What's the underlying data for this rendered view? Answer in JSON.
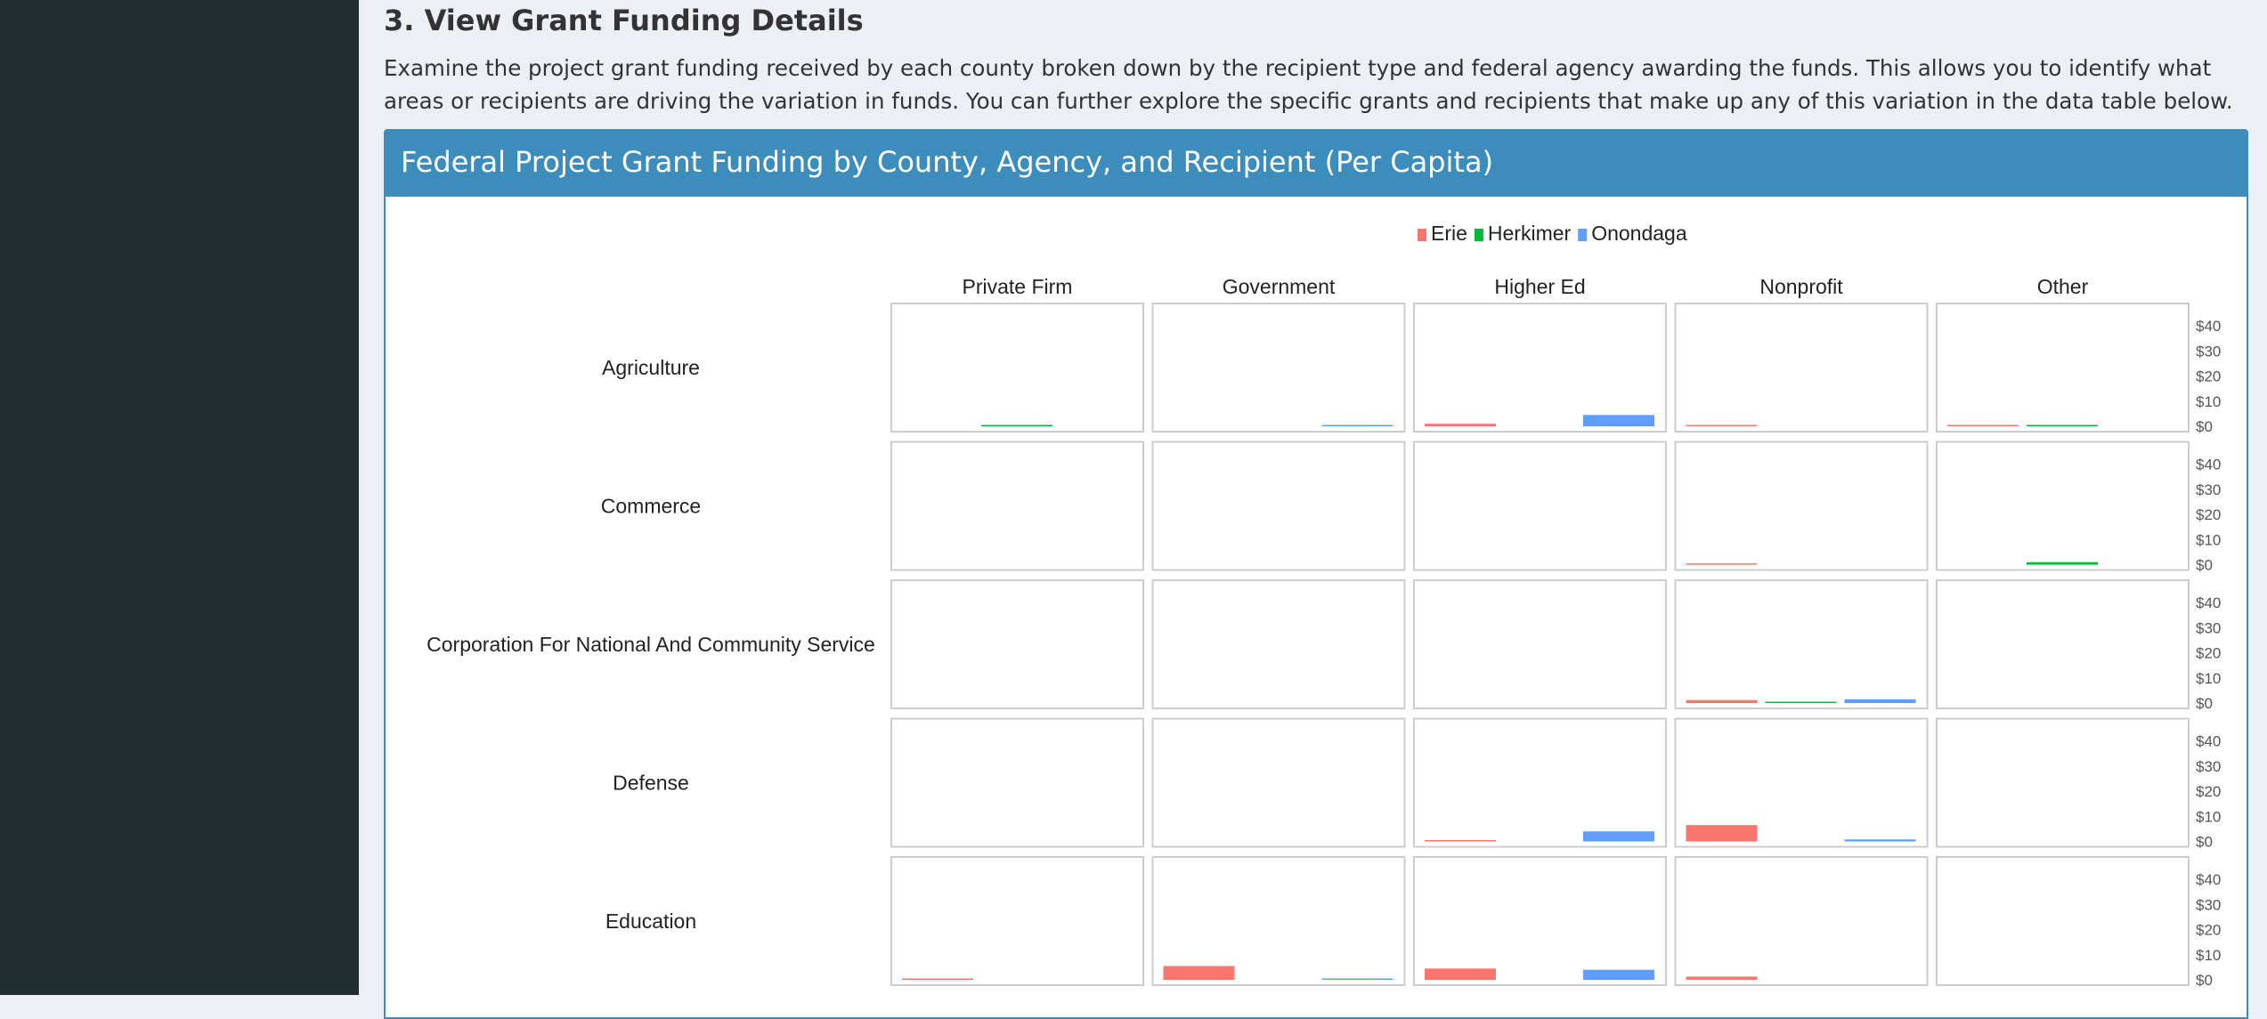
{
  "section": {
    "title": "3. View Grant Funding Details",
    "description": "Examine the project grant funding received by each county broken down by the recipient type and federal agency awarding the funds. This allows you to identify what areas or recipients are driving the variation in funds. You can further explore the specific grants and recipients that make up any of this variation in the data table below."
  },
  "box": {
    "title": "Federal Project Grant Funding by County, Agency, and Recipient (Per Capita)"
  },
  "chart_data": {
    "type": "bar",
    "layout": "facet-grid",
    "title": "Federal Project Grant Funding by County, Agency, and Recipient (Per Capita)",
    "legend_position": "top",
    "series": [
      {
        "name": "Erie",
        "color": "#f8766d"
      },
      {
        "name": "Herkimer",
        "color": "#00ba38"
      },
      {
        "name": "Onondaga",
        "color": "#619cff"
      }
    ],
    "columns": [
      "Private Firm",
      "Government",
      "Higher Ed",
      "Nonprofit",
      "Other"
    ],
    "rows": [
      "Agriculture",
      "Commerce",
      "Corporation For National And Community Service",
      "Defense",
      "Education"
    ],
    "y_ticks": [
      "$0",
      "$10",
      "$20",
      "$30",
      "$40"
    ],
    "ylim": [
      0,
      40
    ],
    "grid": false,
    "values": [
      [
        [
          0,
          0.5,
          0
        ],
        [
          0,
          0,
          0.3
        ],
        [
          1,
          0,
          4.5
        ],
        [
          0.3,
          0,
          0
        ],
        [
          0.3,
          0.3,
          0
        ]
      ],
      [
        [
          0,
          0,
          0
        ],
        [
          0,
          0,
          0
        ],
        [
          0,
          0,
          0
        ],
        [
          0.3,
          0,
          0
        ],
        [
          0,
          1,
          0
        ]
      ],
      [
        [
          0,
          0,
          0
        ],
        [
          0,
          0,
          0
        ],
        [
          0,
          0,
          0
        ],
        [
          1.2,
          0.5,
          1.5
        ],
        [
          0,
          0,
          0
        ]
      ],
      [
        [
          0,
          0,
          0
        ],
        [
          0,
          0,
          0
        ],
        [
          0.3,
          0,
          4
        ],
        [
          6.5,
          0,
          0.8
        ],
        [
          0,
          0,
          0
        ]
      ],
      [
        [
          0.3,
          0,
          0
        ],
        [
          5.5,
          0,
          0.3
        ],
        [
          4.5,
          0,
          4
        ],
        [
          1.3,
          0,
          0
        ],
        [
          0,
          0,
          0
        ]
      ]
    ]
  }
}
